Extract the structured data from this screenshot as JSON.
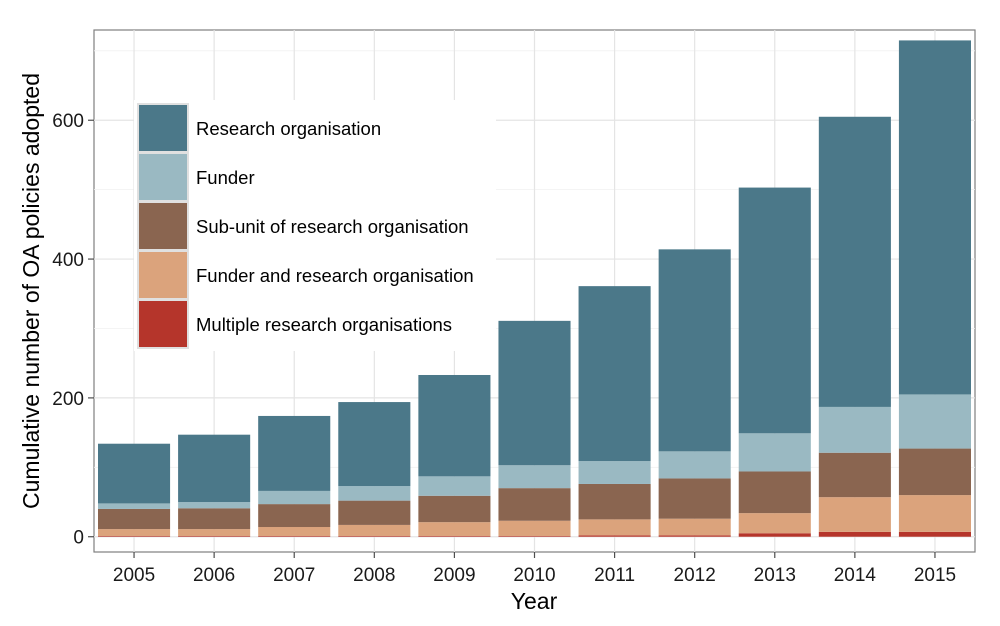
{
  "chart_data": {
    "type": "bar",
    "stacked": true,
    "title": "",
    "xlabel": "Year",
    "ylabel": "Cumulative number of OA policies adopted",
    "categories": [
      "2005",
      "2006",
      "2007",
      "2008",
      "2009",
      "2010",
      "2011",
      "2012",
      "2013",
      "2014",
      "2015"
    ],
    "ylim": [
      -22,
      730
    ],
    "yticks": [
      0,
      200,
      400,
      600
    ],
    "grid": true,
    "legend_position": "top-left",
    "series": [
      {
        "name": "Multiple research organisations",
        "color": "#b5352b",
        "values": [
          1,
          1,
          1,
          1,
          1,
          1,
          2,
          2,
          5,
          7,
          7
        ]
      },
      {
        "name": "Funder and research organisation",
        "color": "#dba37c",
        "values": [
          10,
          10,
          13,
          16,
          20,
          22,
          23,
          24,
          29,
          50,
          53
        ]
      },
      {
        "name": "Sub-unit of research organisation",
        "color": "#8a6550",
        "values": [
          29,
          30,
          33,
          35,
          38,
          47,
          51,
          58,
          60,
          64,
          67
        ]
      },
      {
        "name": "Funder",
        "color": "#9ab9c2",
        "values": [
          8,
          9,
          19,
          21,
          28,
          33,
          33,
          39,
          55,
          66,
          78
        ]
      },
      {
        "name": "Research organisation",
        "color": "#4b7889",
        "values": [
          86,
          97,
          108,
          121,
          146,
          208,
          252,
          291,
          354,
          418,
          510
        ]
      }
    ]
  }
}
